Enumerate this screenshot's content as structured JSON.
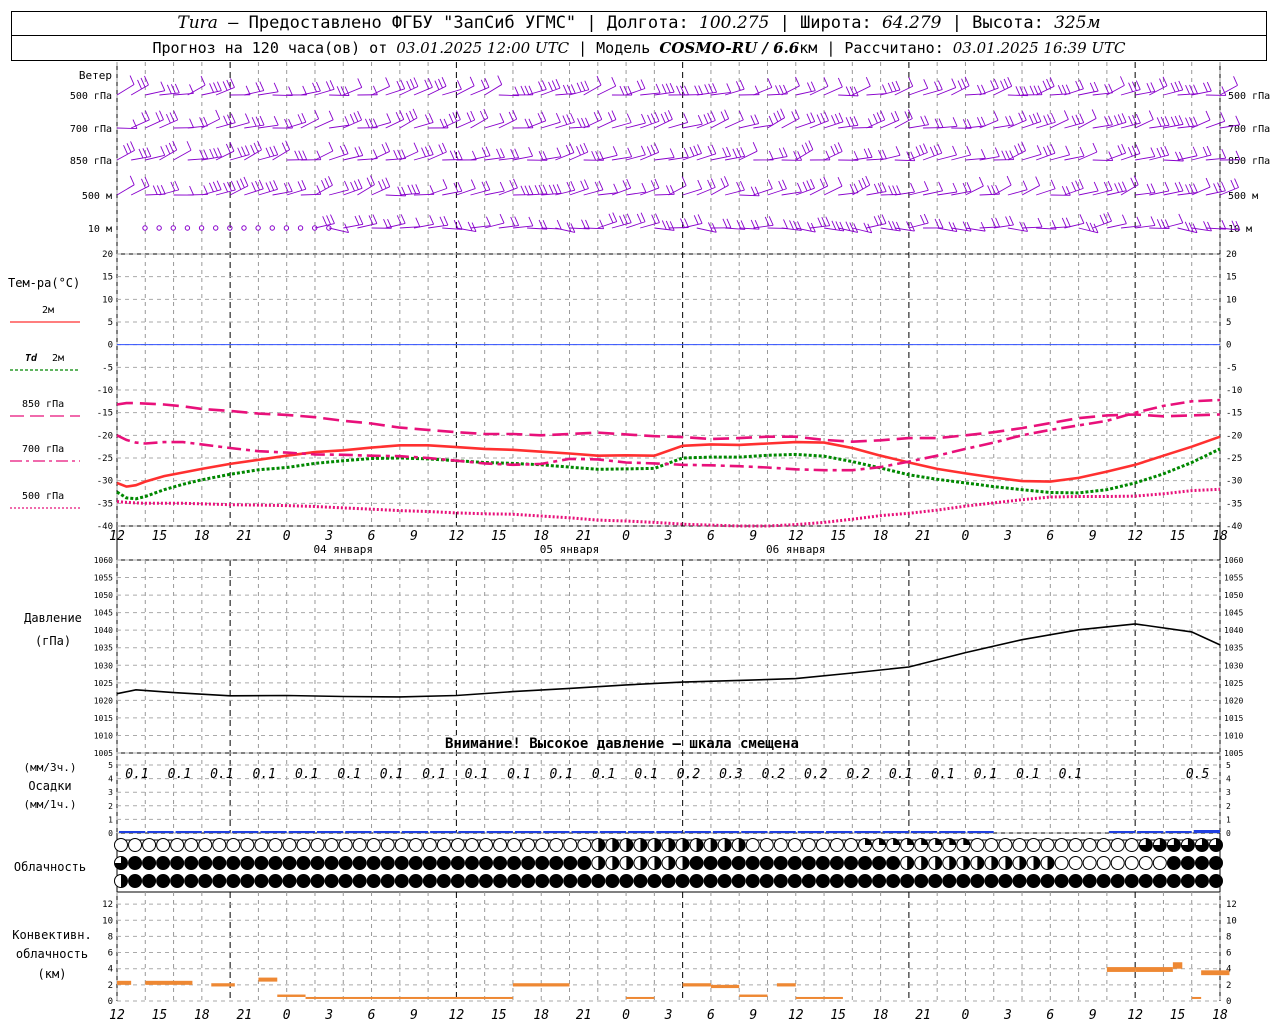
{
  "header": {
    "station": "Tura",
    "provider": "– Предоставлено ФГБУ \"ЗапСиб УГМС\"",
    "lon_label": "Долгота:",
    "lon_value": "100.275",
    "lat_label": "Широта:",
    "lat_value": "64.279",
    "alt_label": "Высота:",
    "alt_value": "325м",
    "forecast_prefix": "Прогноз на 120 часа(ов) от",
    "forecast_time": "03.01.2025 12:00 UTC",
    "model_label": "Модель",
    "model_name": "COSMO-RU / 6.6",
    "model_unit": "км",
    "calc_label": "Рассчитано:",
    "calc_time": "03.01.2025 16:39 UTC"
  },
  "wind": {
    "title": "Ветер",
    "levels": [
      "500 гПа",
      "700 гПа",
      "850 гПа",
      "500 м",
      "10 м"
    ],
    "color": "#8800cc"
  },
  "temperature": {
    "title": "Тем-ра(°C)",
    "legend": [
      "2м",
      "Td 2м",
      "850 гПа",
      "700 гПа",
      "500 гПа"
    ],
    "legend_td_prefix": "Td",
    "legend_td_suffix": "2м",
    "colors": {
      "t2m": "#ff3030",
      "td2m": "#008800",
      "t850": "#e8107a",
      "t700": "#e8107a",
      "t500": "#e8107a",
      "zero": "#3050ff"
    },
    "ticks": [
      "20",
      "15",
      "10",
      "5",
      "0",
      "-5",
      "-10",
      "-15",
      "-20",
      "-25",
      "-30",
      "-35",
      "-40"
    ]
  },
  "time_axis": {
    "hours": [
      "12",
      "15",
      "18",
      "21",
      "0",
      "3",
      "6",
      "9",
      "12",
      "15",
      "18",
      "21",
      "0",
      "3",
      "6",
      "9",
      "12",
      "15",
      "18",
      "21",
      "0",
      "3",
      "6",
      "9",
      "12",
      "15",
      "18"
    ],
    "dates": [
      "04 января",
      "05 января",
      "06 января"
    ]
  },
  "pressure": {
    "title": "Давление",
    "unit": "(гПа)",
    "ticks": [
      "1060",
      "1055",
      "1050",
      "1045",
      "1040",
      "1035",
      "1030",
      "1025",
      "1020",
      "1015",
      "1010",
      "1005"
    ],
    "warning": "Внимание! Высокое давление – шкала смещена"
  },
  "precip": {
    "unit3": "(мм/3ч.)",
    "title": "Осадки",
    "unit1": "(мм/1ч.)",
    "ticks": [
      "5",
      "4",
      "3",
      "2",
      "1",
      "0"
    ],
    "labels": [
      "0.1",
      "0.1",
      "0.1",
      "0.1",
      "0.1",
      "0.1",
      "0.1",
      "0.1",
      "0.1",
      "0.1",
      "0.1",
      "0.1",
      "0.1",
      "0.2",
      "0.3",
      "0.2",
      "0.2",
      "0.2",
      "0.1",
      "0.1",
      "0.1",
      "0.1",
      "0.1",
      "",
      "",
      "0.5"
    ],
    "color": "#2040e0"
  },
  "cloud": {
    "title": "Облачность"
  },
  "convective": {
    "title1": "Конвективн.",
    "title2": "облачность",
    "unit": "(км)",
    "ticks": [
      "12",
      "10",
      "8",
      "6",
      "4",
      "2",
      "0"
    ],
    "color": "#ee8833"
  },
  "chart_data": [
    {
      "type": "line",
      "title": "Тем-ра(°C)",
      "x_hours_from_start": [
        0,
        1,
        2,
        3,
        5,
        7,
        9,
        12,
        15,
        18,
        21,
        24,
        27,
        30,
        33,
        36,
        39,
        42,
        45,
        48,
        51,
        54,
        57,
        60,
        63,
        66,
        69,
        72,
        75,
        78,
        81,
        84,
        87,
        90,
        93,
        96,
        99,
        102,
        105,
        108,
        111,
        114,
        117
      ],
      "series": [
        {
          "name": "2м",
          "values": [
            -30.5,
            -31.3,
            -31.0,
            -30.2,
            -29.0,
            -28.2,
            -27.4,
            -26.3,
            -25.4,
            -24.5,
            -23.7,
            -23.3,
            -22.7,
            -22.2,
            -22.2,
            -22.6,
            -23.0,
            -23.2,
            -23.6,
            -24.0,
            -24.5,
            -24.4,
            -24.5,
            -22.3,
            -22.0,
            -22.1,
            -21.8,
            -21.5,
            -21.6,
            -22.8,
            -24.5,
            -26.0,
            -27.4,
            -28.4,
            -29.3,
            -30.1,
            -30.2,
            -29.4,
            -28.0,
            -26.5,
            -24.5,
            -22.5,
            -20.3
          ]
        },
        {
          "name": "Td 2м",
          "values": [
            -32.5,
            -33.8,
            -34.0,
            -33.5,
            -32.0,
            -30.8,
            -29.8,
            -28.6,
            -27.6,
            -27.1,
            -26.2,
            -25.6,
            -25.1,
            -25.0,
            -25.2,
            -25.6,
            -26.0,
            -26.2,
            -26.5,
            -27.0,
            -27.5,
            -27.4,
            -27.3,
            -25.0,
            -24.8,
            -24.8,
            -24.4,
            -24.2,
            -24.6,
            -25.8,
            -27.2,
            -28.7,
            -29.7,
            -30.5,
            -31.3,
            -32.0,
            -32.6,
            -32.7,
            -32.0,
            -30.5,
            -28.5,
            -26.0,
            -23.0
          ]
        },
        {
          "name": "850 гПа",
          "values": [
            -13.2,
            -12.9,
            -12.9,
            -13.0,
            -13.2,
            -13.6,
            -14.2,
            -14.6,
            -15.2,
            -15.5,
            -16.0,
            -16.8,
            -17.4,
            -18.3,
            -18.8,
            -19.3,
            -19.7,
            -19.7,
            -20.0,
            -19.7,
            -19.4,
            -19.8,
            -20.2,
            -20.4,
            -20.8,
            -20.6,
            -20.3,
            -20.3,
            -21.0,
            -21.4,
            -21.1,
            -20.6,
            -20.6,
            -20.0,
            -19.3,
            -18.4,
            -17.3,
            -16.2,
            -15.6,
            -15.4,
            -15.8,
            -15.6,
            -15.4
          ]
        },
        {
          "name": "700 гПа",
          "values": [
            -20.0,
            -21.0,
            -21.6,
            -21.8,
            -21.5,
            -21.5,
            -22.0,
            -22.8,
            -23.5,
            -23.8,
            -24.2,
            -24.3,
            -24.5,
            -24.6,
            -25.0,
            -25.6,
            -26.2,
            -26.5,
            -26.3,
            -25.2,
            -25.3,
            -26.0,
            -26.2,
            -26.5,
            -26.6,
            -26.8,
            -27.1,
            -27.5,
            -27.7,
            -27.7,
            -27.0,
            -25.8,
            -24.5,
            -23.0,
            -21.6,
            -20.0,
            -18.8,
            -17.8,
            -16.8,
            -15.0,
            -13.5,
            -12.5,
            -12.2
          ]
        },
        {
          "name": "500 гПа",
          "values": [
            -34.6,
            -34.8,
            -34.9,
            -35.0,
            -35.0,
            -35.0,
            -35.1,
            -35.3,
            -35.4,
            -35.5,
            -35.7,
            -36.0,
            -36.3,
            -36.6,
            -36.8,
            -37.1,
            -37.3,
            -37.4,
            -37.8,
            -38.2,
            -38.7,
            -38.9,
            -39.2,
            -39.6,
            -39.8,
            -40.0,
            -40.0,
            -39.7,
            -39.2,
            -38.5,
            -37.7,
            -37.2,
            -36.5,
            -35.6,
            -34.9,
            -34.2,
            -33.6,
            -33.5,
            -33.5,
            -33.4,
            -32.9,
            -32.2,
            -31.9
          ]
        }
      ],
      "ylim": [
        -40,
        20
      ],
      "grid": true
    },
    {
      "type": "line",
      "title": "Давление",
      "x_hours_from_start": [
        0,
        2,
        6,
        12,
        18,
        24,
        30,
        36,
        42,
        48,
        54,
        60,
        66,
        72,
        78,
        84,
        90,
        96,
        102,
        108,
        114,
        117
      ],
      "series": [
        {
          "name": "Давление",
          "values": [
            1021.9,
            1023.0,
            1022.2,
            1021.3,
            1021.4,
            1021.1,
            1021.0,
            1021.4,
            1022.5,
            1023.4,
            1024.4,
            1025.2,
            1025.7,
            1026.2,
            1027.8,
            1029.5,
            1033.6,
            1037.3,
            1040.1,
            1041.8,
            1039.5,
            1035.8
          ]
        }
      ],
      "ylim": [
        1005,
        1060
      ]
    },
    {
      "type": "bar",
      "title": "Осадки",
      "x_hours_from_start": [
        0,
        3,
        6,
        9,
        12,
        15,
        18,
        21,
        24,
        27,
        30,
        33,
        36,
        39,
        42,
        45,
        48,
        51,
        54,
        57,
        60,
        63,
        66,
        69,
        72,
        75,
        78,
        81,
        84,
        87,
        90,
        93,
        96,
        99,
        102,
        105,
        108,
        111,
        114
      ],
      "values": [
        0.1,
        0.1,
        0.1,
        0.1,
        0.1,
        0.1,
        0.1,
        0.1,
        0.1,
        0.1,
        0.1,
        0.1,
        0.1,
        0.1,
        0.1,
        0.1,
        0.1,
        0.1,
        0.1,
        0.1,
        0.2,
        0.3,
        0.2,
        0.2,
        0.2,
        0.1,
        0.1,
        0.1,
        0.1,
        0.1,
        0.1,
        0,
        0,
        0,
        0,
        0.1,
        0.1,
        0.2,
        0.5
      ],
      "ylim": [
        0,
        5
      ]
    },
    {
      "type": "bar",
      "title": "Конвективн. облачность",
      "segments": [
        {
          "x0": 0,
          "x1": 1.5,
          "bottom": 2.0,
          "top": 2.5
        },
        {
          "x0": 3,
          "x1": 8,
          "bottom": 2.0,
          "top": 2.5
        },
        {
          "x0": 10,
          "x1": 12.5,
          "bottom": 1.8,
          "top": 2.2
        },
        {
          "x0": 15,
          "x1": 17,
          "bottom": 2.4,
          "top": 2.9
        },
        {
          "x0": 17,
          "x1": 20,
          "bottom": 0.5,
          "top": 0.8
        },
        {
          "x0": 20,
          "x1": 42,
          "bottom": 0.3,
          "top": 0.5
        },
        {
          "x0": 42,
          "x1": 48,
          "bottom": 1.8,
          "top": 2.2
        },
        {
          "x0": 54,
          "x1": 57,
          "bottom": 0.3,
          "top": 0.5
        },
        {
          "x0": 60,
          "x1": 63,
          "bottom": 1.8,
          "top": 2.2
        },
        {
          "x0": 63,
          "x1": 66,
          "bottom": 1.6,
          "top": 2.0
        },
        {
          "x0": 66,
          "x1": 69,
          "bottom": 0.5,
          "top": 0.8
        },
        {
          "x0": 70,
          "x1": 72,
          "bottom": 1.8,
          "top": 2.2
        },
        {
          "x0": 72,
          "x1": 77,
          "bottom": 0.3,
          "top": 0.5
        },
        {
          "x0": 105,
          "x1": 108,
          "bottom": 3.6,
          "top": 4.2
        },
        {
          "x0": 108,
          "x1": 112,
          "bottom": 3.6,
          "top": 4.2
        },
        {
          "x0": 112,
          "x1": 113,
          "bottom": 4.0,
          "top": 4.8
        },
        {
          "x0": 114,
          "x1": 115,
          "bottom": 0.3,
          "top": 0.5
        },
        {
          "x0": 115,
          "x1": 118,
          "bottom": 3.2,
          "top": 3.8
        }
      ],
      "ylim": [
        0,
        14
      ]
    }
  ]
}
